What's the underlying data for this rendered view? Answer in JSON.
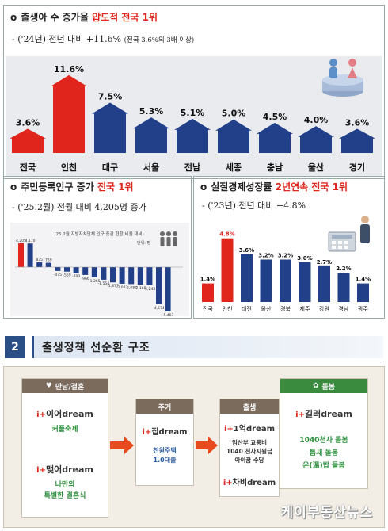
{
  "panel1": {
    "bullet": "o",
    "title_main": "출생아 수 증가율",
    "title_highlight": "압도적 전국 1위",
    "subtitle_main": "- ('24년) 전년 대비 +11.6%",
    "subtitle_note": "(전국 3.6%의 3배 이상)"
  },
  "panel2": {
    "bullet": "o",
    "title_main": "주민등록인구 증가",
    "title_highlight": "전국 1위",
    "subtitle": "- ('25.2월) 전월 대비 4,205명 증가",
    "chart_title": "'25.2월 지방자치단체 인구 증감 현황(비율 대비)",
    "chart_unit": "단위: 명"
  },
  "panel3": {
    "bullet": "o",
    "title_main": "실질경제성장률",
    "title_highlight": "2년연속 전국 1위",
    "subtitle": "- ('23년) 전년 대비 +4.8%"
  },
  "section": {
    "number": "2",
    "title": "출생정책 선순환 구조"
  },
  "flow": {
    "col1": {
      "header": "만남/결혼",
      "brand1_pre": "i+",
      "brand1_name": "이어",
      "brand1_suffix": "dream",
      "desc1": "커플축제",
      "brand2_pre": "i+",
      "brand2_name": "맺어",
      "brand2_suffix": "dream",
      "desc2_line1": "나만의",
      "desc2_line2": "특별한 결혼식"
    },
    "col2": {
      "header": "주거",
      "brand_pre": "i+",
      "brand_name": "집",
      "brand_suffix": "dream",
      "desc_line1": "천원주택",
      "desc_line2": "1.0대출"
    },
    "col3": {
      "header": "출생",
      "brand1_pre": "i+",
      "brand1_name": "1억",
      "brand1_suffix": "dream",
      "desc_line1": "임산부 교통비",
      "desc_line2": "1040 천사지원금",
      "desc_line3": "아이꿈 수당",
      "brand2_pre": "i+",
      "brand2_name": "차비",
      "brand2_suffix": "dream"
    },
    "col4": {
      "header": "돌봄",
      "brand_pre": "i+",
      "brand_name": "길러",
      "brand_suffix": "dream",
      "desc_line1": "1040천사 돌봄",
      "desc_line2": "틈새 돌봄",
      "desc_line3": "온(溫)밥 돌봄"
    },
    "watermark": "케이부동산뉴스"
  },
  "colors": {
    "highlight_red": "#e0261c",
    "bar_blue": "#22408a",
    "header_navy": "#2a4f86",
    "care_green": "#3b8b3f",
    "flow_arrow": "#e84a1f"
  },
  "chart_data": [
    {
      "type": "bar",
      "categories": [
        "전국",
        "인천",
        "대구",
        "서울",
        "전남",
        "세종",
        "충남",
        "울산",
        "경기"
      ],
      "values": [
        3.6,
        11.6,
        7.5,
        5.3,
        5.1,
        5.0,
        4.5,
        4.0,
        3.6
      ],
      "value_labels": [
        "3.6%",
        "11.6%",
        "7.5%",
        "5.3%",
        "5.1%",
        "5.0%",
        "4.5%",
        "4.0%",
        "3.6%"
      ],
      "highlight": [
        "전국",
        "인천"
      ],
      "ylim": [
        0,
        13
      ]
    },
    {
      "type": "bar",
      "values": [
        4205,
        4170,
        835,
        759,
        -475,
        -559,
        -703,
        -966,
        -1265,
        -1554,
        -1877,
        -2043,
        -2087,
        -2165,
        -2243,
        -4574,
        -5467
      ],
      "value_labels": [
        "4,205",
        "4,170",
        "835",
        "759",
        "-475",
        "-559",
        "-703",
        "-966",
        "-1,265",
        "-1,554",
        "-1,877",
        "-2,043",
        "-2,087",
        "-2,165",
        "-2,243",
        "-4,574",
        "-5,467"
      ],
      "ylim": [
        -6000,
        5000
      ]
    },
    {
      "type": "bar",
      "categories": [
        "전국",
        "인천",
        "대전",
        "울산",
        "경북",
        "제주",
        "강원",
        "경남",
        "광주"
      ],
      "values": [
        1.4,
        4.8,
        3.6,
        3.2,
        3.2,
        3.0,
        2.7,
        2.2,
        1.4
      ],
      "value_labels": [
        "1.4%",
        "4.8%",
        "3.6%",
        "3.2%",
        "3.2%",
        "3.0%",
        "2.7%",
        "2.2%",
        "1.4%"
      ],
      "highlight": [
        "전국",
        "인천"
      ],
      "ylim": [
        0,
        5.5
      ]
    }
  ]
}
